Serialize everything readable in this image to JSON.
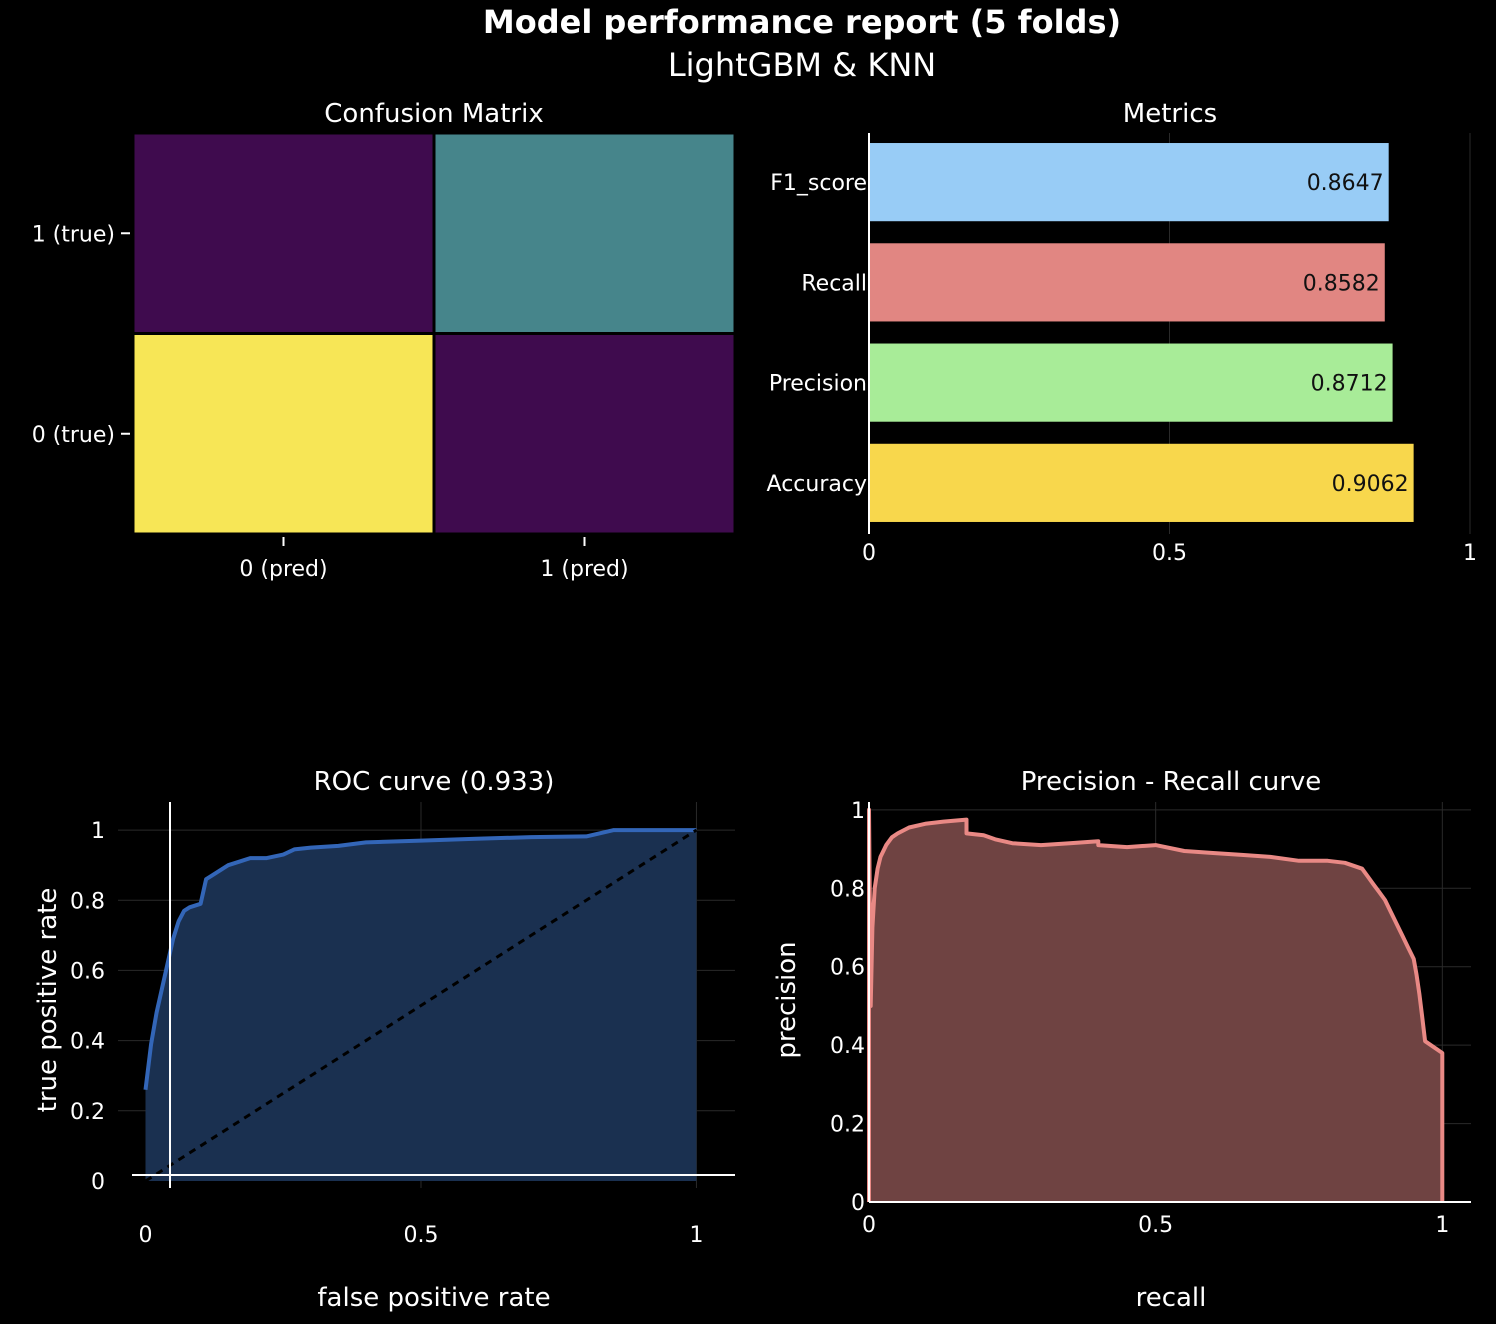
{
  "report": {
    "title": "Model performance report (5 folds)",
    "subtitle": "LightGBM & KNN"
  },
  "colors": {
    "background": "#000000",
    "grid": "#2a2a2a",
    "roc_line": "#3366b8",
    "roc_fill": "#1a3050",
    "pr_line": "#e98985",
    "pr_fill": "#6f4342",
    "diagonal": "#000000"
  },
  "chart_data": [
    {
      "type": "heatmap",
      "title": "Confusion Matrix",
      "x_labels": [
        "0 (pred)",
        "1 (pred)"
      ],
      "y_labels": [
        "0 (true)",
        "1 (true)"
      ],
      "cells": [
        {
          "row": "1 (true)",
          "col": "0 (pred)",
          "color": "#3f0b4e"
        },
        {
          "row": "1 (true)",
          "col": "1 (pred)",
          "color": "#46858b"
        },
        {
          "row": "0 (true)",
          "col": "0 (pred)",
          "color": "#f7e656"
        },
        {
          "row": "0 (true)",
          "col": "1 (pred)",
          "color": "#3f0b4e"
        }
      ]
    },
    {
      "type": "bar",
      "orientation": "horizontal",
      "title": "Metrics",
      "categories": [
        "F1_score",
        "Recall",
        "Precision",
        "Accuracy"
      ],
      "values": [
        0.8647,
        0.8582,
        0.8712,
        0.9062
      ],
      "labels": [
        "0.8647",
        "0.8582",
        "0.8712",
        "0.9062"
      ],
      "colors": [
        "#98ccf6",
        "#e18682",
        "#a8ec98",
        "#f8d74c"
      ],
      "xlim": [
        0,
        1
      ],
      "xticks": [
        0,
        0.5,
        1
      ],
      "xtick_labels": [
        "0",
        "0.5",
        "1"
      ]
    },
    {
      "type": "area",
      "title": "ROC curve (0.933)",
      "xlabel": "false positive rate",
      "ylabel": "true positive rate",
      "xlim": [
        -0.05,
        1.07
      ],
      "ylim": [
        -0.02,
        1.08
      ],
      "xticks": [
        0,
        0.5,
        1
      ],
      "xtick_labels": [
        "0",
        "0.5",
        "1"
      ],
      "yticks": [
        0,
        0.2,
        0.4,
        0.6,
        0.8,
        1
      ],
      "ytick_labels": [
        "0",
        "0.2",
        "0.4",
        "0.6",
        "0.8",
        "1"
      ],
      "x": [
        0,
        0,
        0.01,
        0.02,
        0.03,
        0.04,
        0.05,
        0.06,
        0.07,
        0.08,
        0.1,
        0.11,
        0.12,
        0.13,
        0.15,
        0.17,
        0.19,
        0.22,
        0.25,
        0.27,
        0.3,
        0.35,
        0.4,
        0.5,
        0.6,
        0.7,
        0.8,
        0.85,
        0.9,
        1
      ],
      "y": [
        0,
        0.26,
        0.39,
        0.48,
        0.55,
        0.62,
        0.69,
        0.74,
        0.77,
        0.78,
        0.79,
        0.86,
        0.87,
        0.88,
        0.9,
        0.91,
        0.92,
        0.92,
        0.93,
        0.945,
        0.95,
        0.955,
        0.965,
        0.97,
        0.975,
        0.98,
        0.982,
        1.0,
        1.0,
        1.0
      ],
      "baseline_x": [
        0,
        1
      ],
      "baseline_y": [
        0,
        1
      ]
    },
    {
      "type": "area",
      "title": "Precision - Recall curve",
      "xlabel": "recall",
      "ylabel": "precision",
      "xlim": [
        0,
        1.05
      ],
      "ylim": [
        0,
        1.02
      ],
      "xticks": [
        0,
        0.5,
        1
      ],
      "xtick_labels": [
        "0",
        "0.5",
        "1"
      ],
      "yticks": [
        0,
        0.2,
        0.4,
        0.6,
        0.8,
        1
      ],
      "ytick_labels": [
        "0",
        "0.2",
        "0.4",
        "0.6",
        "0.8",
        "1"
      ],
      "x": [
        0,
        0,
        0.003,
        0.006,
        0.01,
        0.015,
        0.02,
        0.03,
        0.04,
        0.05,
        0.07,
        0.1,
        0.13,
        0.17,
        0.17,
        0.2,
        0.22,
        0.25,
        0.3,
        0.35,
        0.4,
        0.4,
        0.45,
        0.5,
        0.55,
        0.6,
        0.65,
        0.7,
        0.75,
        0.8,
        0.83,
        0.86,
        0.87,
        0.88,
        0.89,
        0.9,
        0.91,
        0.92,
        0.93,
        0.94,
        0.95,
        0.955,
        0.96,
        0.965,
        0.97,
        1.0,
        1.0
      ],
      "y": [
        0,
        1.0,
        0.5,
        0.7,
        0.8,
        0.85,
        0.88,
        0.91,
        0.93,
        0.94,
        0.955,
        0.965,
        0.97,
        0.975,
        0.94,
        0.935,
        0.925,
        0.915,
        0.91,
        0.915,
        0.92,
        0.91,
        0.905,
        0.91,
        0.895,
        0.89,
        0.885,
        0.88,
        0.87,
        0.87,
        0.865,
        0.85,
        0.83,
        0.81,
        0.79,
        0.77,
        0.74,
        0.71,
        0.68,
        0.65,
        0.62,
        0.58,
        0.53,
        0.47,
        0.41,
        0.38,
        0
      ]
    }
  ]
}
